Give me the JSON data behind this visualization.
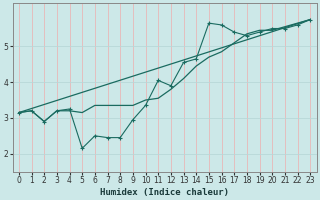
{
  "title": "",
  "xlabel": "Humidex (Indice chaleur)",
  "ylabel": "",
  "background_color": "#cce8e8",
  "grid_color_v": "#e8b8b8",
  "grid_color_h": "#b8d8d8",
  "line_color": "#1a6b60",
  "xlim": [
    -0.5,
    23.5
  ],
  "ylim": [
    1.5,
    6.2
  ],
  "xticks": [
    0,
    1,
    2,
    3,
    4,
    5,
    6,
    7,
    8,
    9,
    10,
    11,
    12,
    13,
    14,
    15,
    16,
    17,
    18,
    19,
    20,
    21,
    22,
    23
  ],
  "yticks": [
    2,
    3,
    4,
    5
  ],
  "line1_x": [
    0,
    1,
    2,
    3,
    4,
    5,
    6,
    7,
    8,
    9,
    10,
    11,
    12,
    13,
    14,
    15,
    16,
    17,
    18,
    19,
    20,
    21,
    22,
    23
  ],
  "line1_y": [
    3.15,
    3.2,
    2.9,
    3.2,
    3.2,
    3.15,
    3.35,
    3.35,
    3.35,
    3.35,
    3.5,
    3.55,
    3.8,
    4.1,
    4.45,
    4.7,
    4.85,
    5.1,
    5.35,
    5.45,
    5.45,
    5.55,
    5.65,
    5.75
  ],
  "line2_x": [
    0,
    1,
    2,
    3,
    4,
    5,
    6,
    7,
    8,
    9,
    10,
    11,
    12,
    13,
    14,
    15,
    16,
    17,
    18,
    19,
    20,
    21,
    22,
    23
  ],
  "line2_y": [
    3.15,
    3.2,
    2.9,
    3.2,
    3.25,
    2.15,
    2.5,
    2.45,
    2.45,
    2.95,
    3.35,
    4.05,
    3.9,
    4.55,
    4.65,
    5.65,
    5.6,
    5.4,
    5.3,
    5.4,
    5.5,
    5.5,
    5.6,
    5.75
  ],
  "line3_x": [
    0,
    23
  ],
  "line3_y": [
    3.15,
    5.75
  ]
}
